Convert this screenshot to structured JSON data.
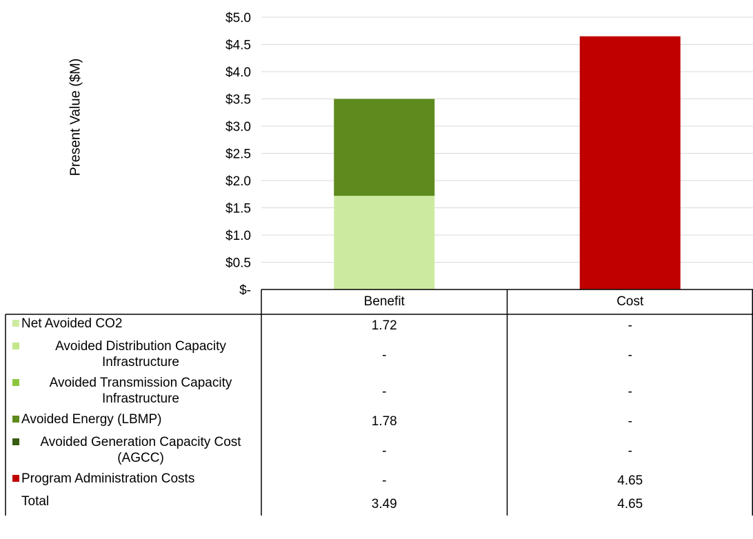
{
  "chart_data": {
    "type": "bar",
    "stacked": true,
    "ylabel": "Present Value ($M)",
    "ylim": [
      0,
      5.0
    ],
    "y_tick_labels": [
      "$-",
      "$0.5",
      "$1.0",
      "$1.5",
      "$2.0",
      "$2.5",
      "$3.0",
      "$3.5",
      "$4.0",
      "$4.5",
      "$5.0"
    ],
    "grid": true,
    "legend": "data-table-left",
    "categories": [
      "Benefit",
      "Cost"
    ],
    "series": [
      {
        "name": "Net Avoided CO2",
        "color": "#cdeba0",
        "values": [
          1.72,
          0
        ],
        "table": [
          "1.72",
          "-"
        ]
      },
      {
        "name": "Avoided Distribution Capacity Infrastructure",
        "color": "#c3e68a",
        "values": [
          0,
          0
        ],
        "table": [
          "-",
          "-"
        ]
      },
      {
        "name": "Avoided Transmission Capacity Infrastructure",
        "color": "#8cc63f",
        "values": [
          0,
          0
        ],
        "table": [
          "-",
          "-"
        ]
      },
      {
        "name": "Avoided Energy (LBMP)",
        "color": "#5e8a1e",
        "values": [
          1.78,
          0
        ],
        "table": [
          "1.78",
          "-"
        ]
      },
      {
        "name": "Avoided Generation Capacity Cost (AGCC)",
        "color": "#375c12",
        "values": [
          0,
          0
        ],
        "table": [
          "-",
          "-"
        ]
      },
      {
        "name": "Program Administration Costs",
        "color": "#c00000",
        "values": [
          0,
          4.65
        ],
        "table": [
          "-",
          "4.65"
        ]
      }
    ],
    "total": {
      "name": "Total",
      "table": [
        "3.49",
        "4.65"
      ]
    }
  }
}
